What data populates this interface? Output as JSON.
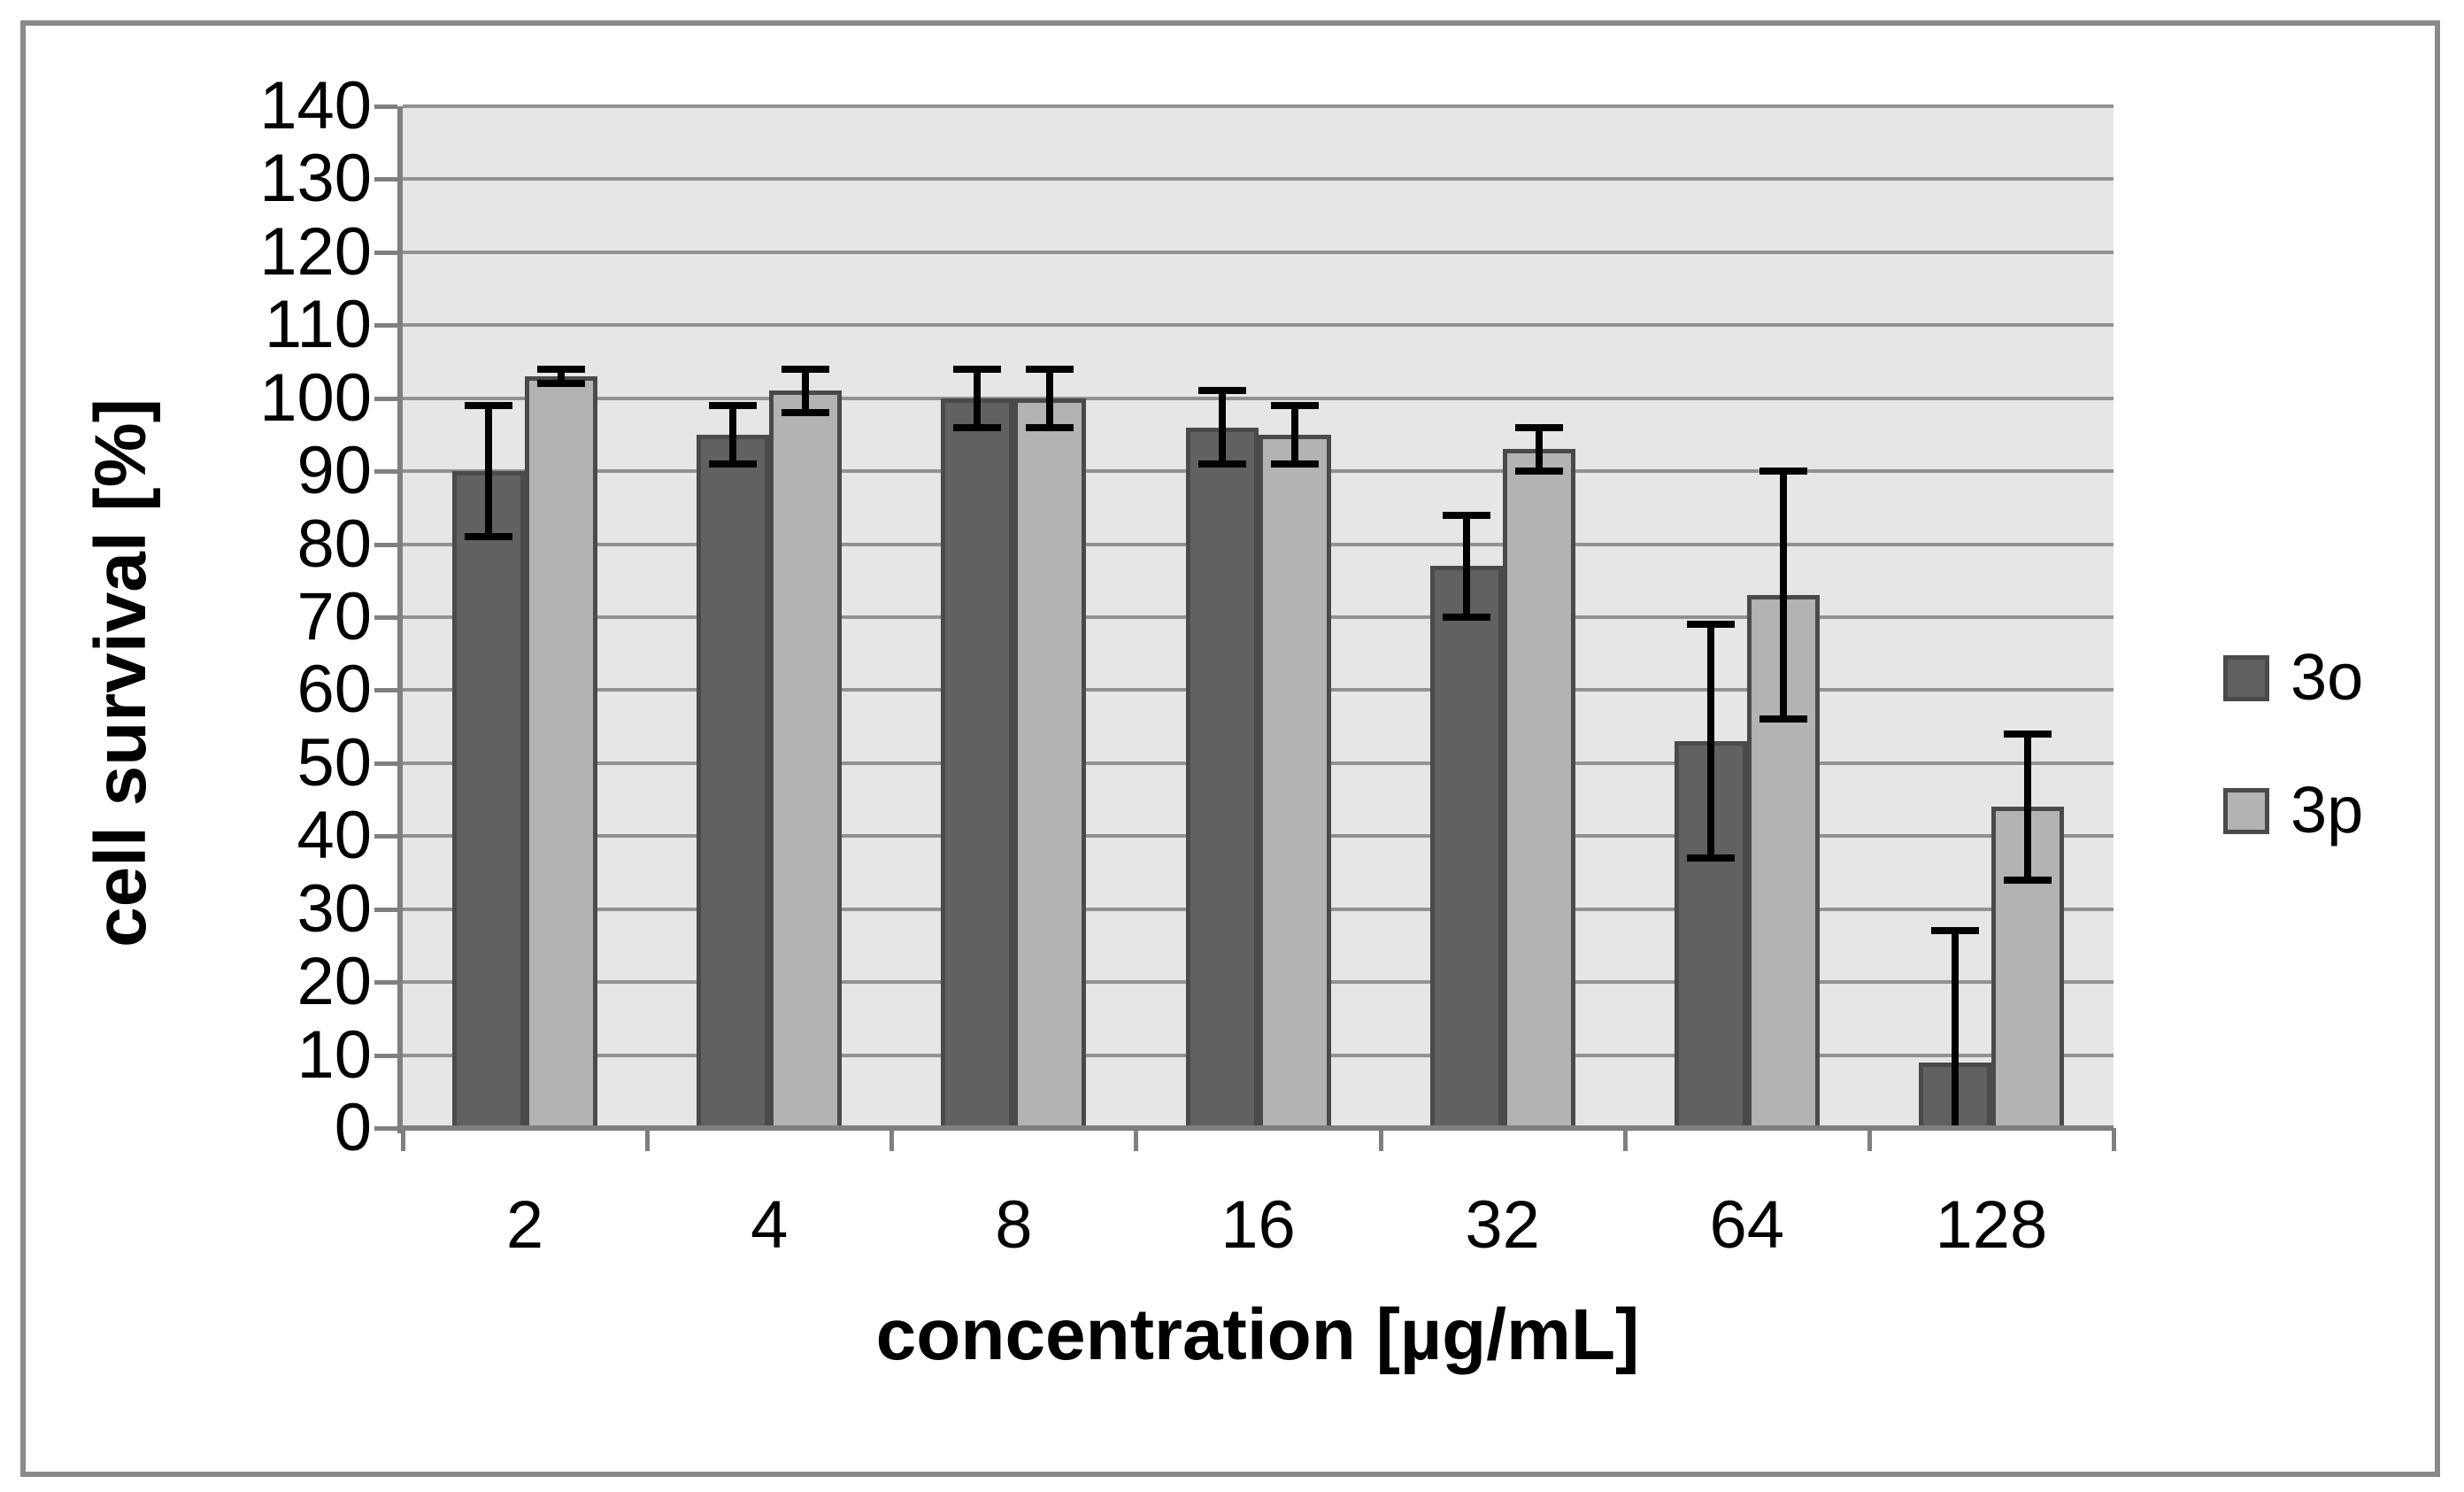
{
  "chart_data": {
    "type": "bar",
    "title": "",
    "xlabel": "concentration [µg/mL]",
    "ylabel": "cell survival [%]",
    "categories": [
      "2",
      "4",
      "8",
      "16",
      "32",
      "64",
      "128"
    ],
    "y_axis": {
      "min": 0,
      "max": 140,
      "step": 10,
      "tick_labels": [
        "0",
        "10",
        "20",
        "30",
        "40",
        "50",
        "60",
        "70",
        "80",
        "90",
        "100",
        "110",
        "120",
        "130",
        "140"
      ]
    },
    "grid": true,
    "legend_position": "right",
    "series": [
      {
        "name": "3o",
        "fill_color": "#616161",
        "border_color": "#4a4a4a",
        "values": [
          90,
          95,
          100,
          96,
          77,
          53,
          9
        ],
        "error_up": [
          9,
          4,
          4,
          5,
          7,
          16,
          18
        ],
        "error_down": [
          9,
          4,
          4,
          5,
          7,
          16,
          9
        ],
        "error_low_cap": [
          true,
          true,
          true,
          true,
          true,
          true,
          false
        ]
      },
      {
        "name": "3p",
        "fill_color": "#b3b3b3",
        "border_color": "#4a4a4a",
        "values": [
          103,
          101,
          100,
          95,
          93,
          73,
          44
        ],
        "error_up": [
          1,
          3,
          4,
          4,
          3,
          17,
          10
        ],
        "error_down": [
          1,
          3,
          4,
          4,
          3,
          17,
          10
        ],
        "error_low_cap": [
          true,
          true,
          true,
          true,
          true,
          true,
          true
        ]
      }
    ],
    "colors": {
      "plot_background": "#e6e6e6",
      "gridline": "#919191",
      "axis": "#7f7f7f",
      "outer_frame": "#8a8a8a",
      "error_bar": "#000000",
      "text": "#000000"
    }
  }
}
